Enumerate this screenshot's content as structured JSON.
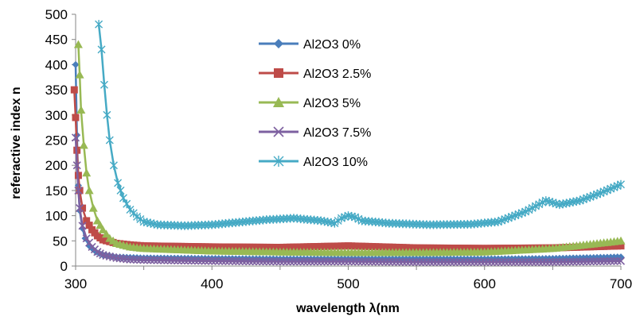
{
  "chart_data": {
    "type": "line",
    "title": "",
    "xlabel": "wavelength λ(nm",
    "ylabel": "referactive index n",
    "xlim": [
      300,
      700
    ],
    "ylim": [
      0,
      500
    ],
    "xticks": [
      300,
      400,
      500,
      600,
      700
    ],
    "yticks": [
      0,
      50,
      100,
      150,
      200,
      250,
      300,
      350,
      400,
      450,
      500
    ],
    "grid": false,
    "legend": "center-right inside plot",
    "series": [
      {
        "name": "Al2O3 0%",
        "color": "#4a7ebb",
        "marker": "diamond",
        "x": [
          300,
          301,
          302,
          303,
          305,
          307,
          310,
          315,
          320,
          330,
          350,
          400,
          450,
          500,
          550,
          600,
          650,
          700
        ],
        "y": [
          400,
          260,
          160,
          110,
          75,
          55,
          40,
          28,
          22,
          18,
          16,
          15,
          14,
          14,
          14,
          14,
          15,
          18
        ]
      },
      {
        "name": "Al2O3 2.5%",
        "color": "#be4b48",
        "marker": "square",
        "x": [
          299,
          300,
          301,
          302,
          303,
          305,
          308,
          312,
          316,
          320,
          330,
          340,
          350,
          400,
          450,
          500,
          550,
          600,
          650,
          700
        ],
        "y": [
          350,
          295,
          230,
          180,
          150,
          115,
          90,
          72,
          60,
          52,
          45,
          42,
          40,
          38,
          37,
          40,
          36,
          35,
          36,
          40
        ]
      },
      {
        "name": "Al2O3 5%",
        "color": "#98b954",
        "marker": "triangle",
        "x": [
          302,
          303,
          304,
          306,
          308,
          310,
          313,
          316,
          320,
          325,
          330,
          340,
          350,
          400,
          450,
          500,
          550,
          600,
          650,
          700
        ],
        "y": [
          440,
          380,
          310,
          240,
          185,
          150,
          115,
          90,
          72,
          55,
          45,
          38,
          35,
          30,
          28,
          27,
          27,
          28,
          35,
          50
        ]
      },
      {
        "name": "Al2O3 7.5%",
        "color": "#7d60a0",
        "marker": "x",
        "x": [
          300,
          301,
          302,
          303,
          305,
          308,
          312,
          316,
          320,
          330,
          340,
          350,
          400,
          450,
          500,
          550,
          600,
          650,
          700
        ],
        "y": [
          255,
          200,
          150,
          115,
          80,
          55,
          38,
          28,
          22,
          16,
          13,
          12,
          10,
          9,
          9,
          8,
          8,
          8,
          10
        ]
      },
      {
        "name": "Al2O3 10%",
        "color": "#46aac5",
        "marker": "star",
        "x": [
          317,
          319,
          321,
          323,
          325,
          328,
          331,
          335,
          340,
          345,
          350,
          360,
          380,
          400,
          420,
          440,
          460,
          480,
          490,
          495,
          500,
          505,
          510,
          530,
          560,
          590,
          610,
          630,
          645,
          655,
          670,
          685,
          700
        ],
        "y": [
          480,
          430,
          360,
          300,
          250,
          200,
          165,
          135,
          112,
          98,
          88,
          82,
          80,
          82,
          87,
          92,
          95,
          90,
          85,
          95,
          100,
          97,
          90,
          85,
          82,
          83,
          88,
          108,
          130,
          122,
          130,
          145,
          162
        ]
      }
    ]
  }
}
